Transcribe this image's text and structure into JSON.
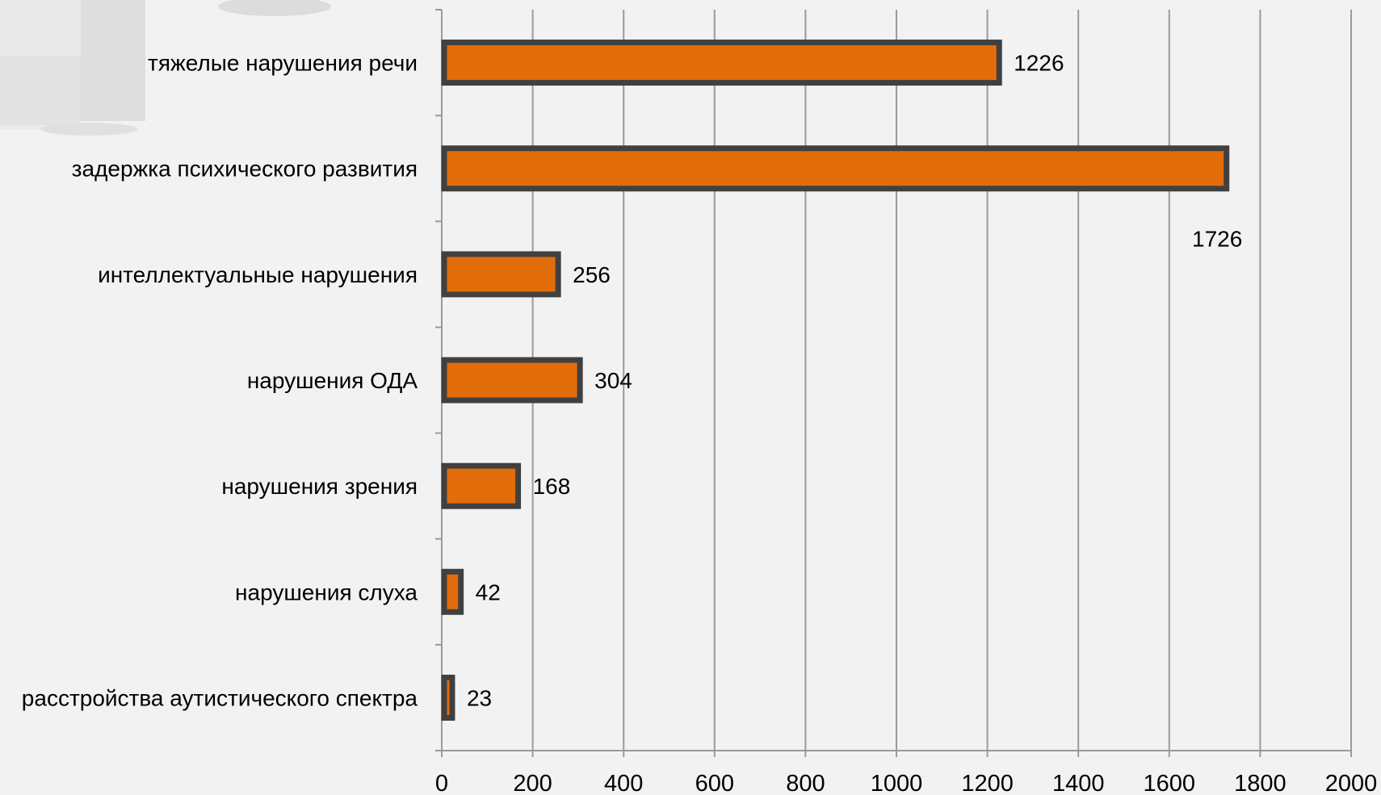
{
  "chart_data": {
    "type": "bar",
    "orientation": "horizontal",
    "title": "",
    "xlabel": "",
    "ylabel": "",
    "categories": [
      "тяжелые нарушения речи",
      "задержка психического развития",
      "интеллектуальные нарушения",
      "нарушения ОДА",
      "нарушения зрения",
      "нарушения слуха",
      "расстройства аутистического спектра"
    ],
    "values": [
      1226,
      1726,
      256,
      304,
      168,
      42,
      23
    ],
    "data_labels": [
      "1226",
      "1726",
      "256",
      "304",
      "168",
      "42",
      "23"
    ],
    "xlim": [
      0,
      2000
    ],
    "x_ticks": [
      "0",
      "200",
      "400",
      "600",
      "800",
      "1000",
      "1200",
      "1400",
      "1600",
      "1800",
      "2000"
    ],
    "grid": "vertical",
    "legend": "none",
    "colors": {
      "bar_fill": "#e36c0a",
      "bar_border": "#404040",
      "grid": "#9a9a9a",
      "axis": "#9a9a9a",
      "text": "#000000",
      "background": "#f2f2f2"
    }
  }
}
